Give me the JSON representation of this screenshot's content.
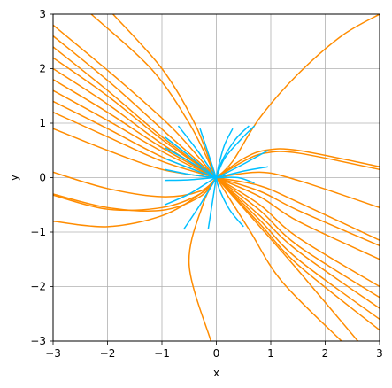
{
  "chart_data": {
    "type": "line",
    "title": "",
    "xlabel": "x",
    "ylabel": "y",
    "xlim": [
      -3,
      3
    ],
    "ylim": [
      -3,
      3
    ],
    "xticks": [
      -3,
      -2,
      -1,
      0,
      1,
      2,
      3
    ],
    "yticks": [
      -3,
      -2,
      -1,
      0,
      1,
      2,
      3
    ],
    "xtick_labels": [
      "−3",
      "−2",
      "−1",
      "0",
      "1",
      "2",
      "3"
    ],
    "ytick_labels": [
      "−3",
      "−2",
      "−1",
      "0",
      "1",
      "2",
      "3"
    ],
    "grid": true,
    "colors": {
      "inner": "#00bfff",
      "outer": "#ff8c00",
      "grid": "#b0b0b0"
    },
    "series": [
      {
        "color": "#ff8c00",
        "lines": [
          [
            [
              -2.3,
              3.0
            ],
            [
              -1.2,
              2.0
            ],
            [
              -0.5,
              1.0
            ],
            [
              -0.05,
              0.1
            ],
            [
              0,
              0
            ]
          ],
          [
            [
              -1.9,
              3.0
            ],
            [
              -1.0,
              2.0
            ],
            [
              -0.4,
              1.0
            ],
            [
              -0.05,
              0.1
            ],
            [
              0,
              0
            ]
          ],
          [
            [
              -3.0,
              2.8
            ],
            [
              -1.8,
              1.8
            ],
            [
              -0.8,
              0.9
            ],
            [
              -0.05,
              0.05
            ],
            [
              0,
              0
            ]
          ],
          [
            [
              -3.0,
              2.6
            ],
            [
              -1.9,
              1.7
            ],
            [
              -0.9,
              0.8
            ],
            [
              -0.05,
              0.05
            ],
            [
              0,
              0
            ]
          ],
          [
            [
              -3.0,
              2.4
            ],
            [
              -2.0,
              1.6
            ],
            [
              -1.0,
              0.75
            ],
            [
              -0.05,
              0.03
            ],
            [
              0,
              0
            ]
          ],
          [
            [
              -3.0,
              2.2
            ],
            [
              -2.0,
              1.5
            ],
            [
              -1.0,
              0.7
            ],
            [
              -0.05,
              0.03
            ],
            [
              0,
              0
            ]
          ],
          [
            [
              -3.0,
              2.0
            ],
            [
              -2.0,
              1.35
            ],
            [
              -1.0,
              0.62
            ],
            [
              -0.05,
              0.02
            ],
            [
              0,
              0
            ]
          ],
          [
            [
              -3.0,
              1.8
            ],
            [
              -2.0,
              1.2
            ],
            [
              -1.0,
              0.55
            ],
            [
              -0.05,
              0.02
            ],
            [
              0,
              0
            ]
          ],
          [
            [
              -3.0,
              1.6
            ],
            [
              -2.0,
              1.05
            ],
            [
              -1.0,
              0.48
            ],
            [
              -0.05,
              0.01
            ],
            [
              0,
              0
            ]
          ],
          [
            [
              -3.0,
              1.4
            ],
            [
              -2.0,
              0.9
            ],
            [
              -1.0,
              0.38
            ],
            [
              -0.05,
              0.01
            ],
            [
              0,
              0
            ]
          ],
          [
            [
              -3.0,
              1.2
            ],
            [
              -2.0,
              0.75
            ],
            [
              -1.0,
              0.3
            ],
            [
              -0.05,
              0.01
            ],
            [
              0,
              0
            ]
          ],
          [
            [
              -3.0,
              0.9
            ],
            [
              -2.0,
              0.5
            ],
            [
              -1.0,
              0.15
            ],
            [
              -0.05,
              0.0
            ],
            [
              0,
              0
            ]
          ],
          [
            [
              -3.0,
              0.1
            ],
            [
              -2.0,
              -0.2
            ],
            [
              -1.0,
              -0.35
            ],
            [
              -0.3,
              -0.25
            ],
            [
              0,
              0
            ]
          ],
          [
            [
              -3.0,
              -0.3
            ],
            [
              -2.0,
              -0.55
            ],
            [
              -1.0,
              -0.6
            ],
            [
              -0.3,
              -0.35
            ],
            [
              0,
              0
            ]
          ],
          [
            [
              -3.0,
              -0.32
            ],
            [
              -2.0,
              -0.58
            ],
            [
              -1.0,
              -0.55
            ],
            [
              -0.3,
              -0.3
            ],
            [
              0,
              0
            ]
          ],
          [
            [
              -3.0,
              -0.8
            ],
            [
              -2.0,
              -0.9
            ],
            [
              -1.0,
              -0.7
            ],
            [
              -0.3,
              -0.3
            ],
            [
              0,
              0
            ]
          ],
          [
            [
              -0.1,
              -3.0
            ],
            [
              -0.5,
              -1.6
            ],
            [
              -0.25,
              -0.5
            ],
            [
              0,
              0
            ]
          ],
          [
            [
              0,
              0
            ],
            [
              0.3,
              0.3
            ],
            [
              0.8,
              1.1
            ],
            [
              1.5,
              1.9
            ],
            [
              2.3,
              2.6
            ],
            [
              3.0,
              3.0
            ]
          ],
          [
            [
              0,
              0
            ],
            [
              0.5,
              0.35
            ],
            [
              0.9,
              0.5
            ],
            [
              1.5,
              0.5
            ],
            [
              3.0,
              0.2
            ]
          ],
          [
            [
              0,
              0
            ],
            [
              0.5,
              0.3
            ],
            [
              0.9,
              0.45
            ],
            [
              1.5,
              0.45
            ],
            [
              3.0,
              0.15
            ]
          ],
          [
            [
              0,
              0
            ],
            [
              0.8,
              0.1
            ],
            [
              1.5,
              -0.05
            ],
            [
              3.0,
              -0.55
            ]
          ],
          [
            [
              0,
              0
            ],
            [
              0.8,
              -0.15
            ],
            [
              1.5,
              -0.45
            ],
            [
              3.0,
              -1.15
            ]
          ],
          [
            [
              0,
              0
            ],
            [
              0.8,
              -0.25
            ],
            [
              1.5,
              -0.6
            ],
            [
              3.0,
              -1.25
            ]
          ],
          [
            [
              0,
              0
            ],
            [
              0.8,
              -0.35
            ],
            [
              1.5,
              -0.8
            ],
            [
              3.0,
              -1.5
            ]
          ],
          [
            [
              0,
              0
            ],
            [
              0.8,
              -0.5
            ],
            [
              1.5,
              -1.1
            ],
            [
              3.0,
              -2.0
            ]
          ],
          [
            [
              0,
              0
            ],
            [
              0.8,
              -0.6
            ],
            [
              1.5,
              -1.25
            ],
            [
              3.0,
              -2.2
            ]
          ],
          [
            [
              0,
              0
            ],
            [
              0.8,
              -0.7
            ],
            [
              1.5,
              -1.35
            ],
            [
              3.0,
              -2.4
            ]
          ],
          [
            [
              0,
              0
            ],
            [
              0.8,
              -0.78
            ],
            [
              1.5,
              -1.5
            ],
            [
              3.0,
              -2.6
            ]
          ],
          [
            [
              0,
              0
            ],
            [
              0.8,
              -0.85
            ],
            [
              1.5,
              -1.6
            ],
            [
              3.0,
              -2.8
            ]
          ],
          [
            [
              0,
              0
            ],
            [
              0.8,
              -0.9
            ],
            [
              1.5,
              -1.7
            ],
            [
              2.6,
              -3.0
            ]
          ],
          [
            [
              0,
              0
            ],
            [
              0.6,
              -0.95
            ],
            [
              1.2,
              -1.9
            ],
            [
              2.3,
              -3.0
            ]
          ]
        ]
      },
      {
        "color": "#00bfff",
        "lines": [
          [
            [
              -0.3,
              0.9
            ],
            [
              -0.15,
              0.45
            ],
            [
              -0.02,
              0.05
            ],
            [
              0,
              0
            ]
          ],
          [
            [
              -0.7,
              0.95
            ],
            [
              -0.35,
              0.5
            ],
            [
              -0.03,
              0.04
            ],
            [
              0,
              0
            ]
          ],
          [
            [
              -0.95,
              0.75
            ],
            [
              -0.5,
              0.4
            ],
            [
              -0.05,
              0.03
            ],
            [
              0,
              0
            ]
          ],
          [
            [
              -0.95,
              0.55
            ],
            [
              -0.5,
              0.3
            ],
            [
              -0.05,
              0.02
            ],
            [
              0,
              0
            ]
          ],
          [
            [
              -0.95,
              0.35
            ],
            [
              -0.5,
              0.18
            ],
            [
              -0.05,
              0.01
            ],
            [
              0,
              0
            ]
          ],
          [
            [
              -0.95,
              0.15
            ],
            [
              -0.5,
              0.06
            ],
            [
              -0.05,
              0.0
            ],
            [
              0,
              0
            ]
          ],
          [
            [
              -0.95,
              -0.05
            ],
            [
              -0.5,
              -0.04
            ],
            [
              -0.05,
              -0.0
            ],
            [
              0,
              0
            ]
          ],
          [
            [
              -0.95,
              -0.5
            ],
            [
              -0.5,
              -0.3
            ],
            [
              -0.05,
              -0.02
            ],
            [
              0,
              0
            ]
          ],
          [
            [
              -0.6,
              -0.95
            ],
            [
              -0.3,
              -0.5
            ],
            [
              -0.03,
              -0.05
            ],
            [
              0,
              0
            ]
          ],
          [
            [
              -0.15,
              -0.95
            ],
            [
              -0.08,
              -0.5
            ],
            [
              -0.01,
              -0.05
            ],
            [
              0,
              0
            ]
          ],
          [
            [
              0,
              0
            ],
            [
              0.05,
              0.02
            ],
            [
              0.5,
              0.25
            ],
            [
              0.95,
              0.5
            ]
          ],
          [
            [
              0,
              0
            ],
            [
              0.05,
              0.01
            ],
            [
              0.5,
              0.12
            ],
            [
              0.95,
              0.2
            ]
          ],
          [
            [
              0,
              0
            ],
            [
              0.05,
              0.0
            ],
            [
              0.4,
              0.0
            ],
            [
              0.7,
              -0.1
            ]
          ],
          [
            [
              0,
              0
            ],
            [
              0.1,
              0.3
            ],
            [
              0.35,
              0.7
            ],
            [
              0.6,
              0.95
            ]
          ],
          [
            [
              0,
              0
            ],
            [
              0.05,
              0.25
            ],
            [
              0.15,
              0.6
            ],
            [
              0.3,
              0.9
            ]
          ],
          [
            [
              0,
              0
            ],
            [
              0.05,
              -0.2
            ],
            [
              0.25,
              -0.6
            ],
            [
              0.5,
              -0.9
            ]
          ],
          [
            [
              0,
              0
            ],
            [
              0.15,
              0.35
            ],
            [
              0.45,
              0.7
            ],
            [
              0.7,
              0.95
            ]
          ]
        ]
      }
    ]
  }
}
